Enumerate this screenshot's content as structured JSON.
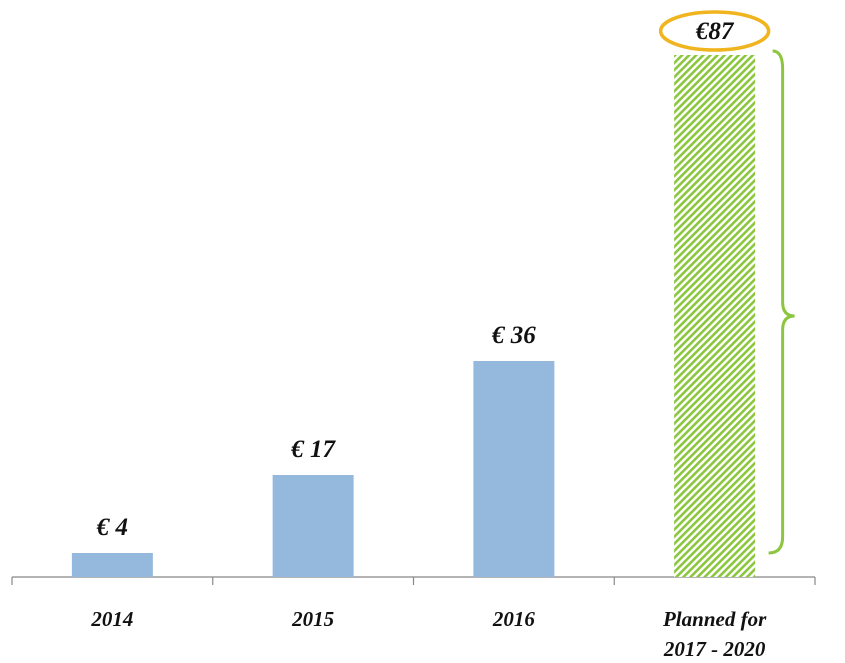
{
  "chart_data": {
    "type": "bar",
    "categories": [
      "2014",
      "2015",
      "2016",
      "Planned for 2017 - 2020"
    ],
    "values": [
      4,
      17,
      36,
      87
    ],
    "value_labels": [
      "€ 4",
      "€ 17",
      "€ 36",
      "€87"
    ],
    "colors": [
      "#95b9dc",
      "#95b9dc",
      "#95b9dc",
      "#8cc63f"
    ],
    "hatched": [
      false,
      false,
      false,
      true
    ],
    "highlight": [
      false,
      false,
      false,
      true
    ],
    "ylim": [
      0,
      90
    ]
  }
}
